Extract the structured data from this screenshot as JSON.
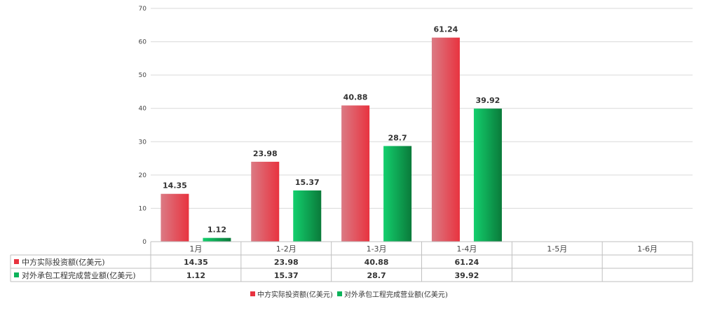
{
  "chart_data": {
    "type": "bar",
    "categories": [
      "1月",
      "1-2月",
      "1-3月",
      "1-4月",
      "1-5月",
      "1-6月"
    ],
    "series": [
      {
        "name": "中方实际投资额(亿美元)",
        "values": [
          14.35,
          23.98,
          40.88,
          61.24,
          null,
          null
        ],
        "color": "#e8333f",
        "color_light": "#db7a84"
      },
      {
        "name": "对外承包工程完成营业额(亿美元)",
        "values": [
          1.12,
          15.37,
          28.7,
          39.92,
          null,
          null
        ],
        "color": "#0bb35a",
        "color_light": "#13cf6d"
      }
    ],
    "value_labels": [
      [
        "14.35",
        "23.98",
        "40.88",
        "61.24",
        "",
        ""
      ],
      [
        "1.12",
        "15.37",
        "28.7",
        "39.92",
        "",
        ""
      ]
    ],
    "ylim": [
      0,
      70
    ],
    "yticks": [
      "0",
      "10",
      "20",
      "30",
      "40",
      "50",
      "60",
      "70"
    ],
    "grid": true,
    "legend": "bottom",
    "data_table": true
  }
}
